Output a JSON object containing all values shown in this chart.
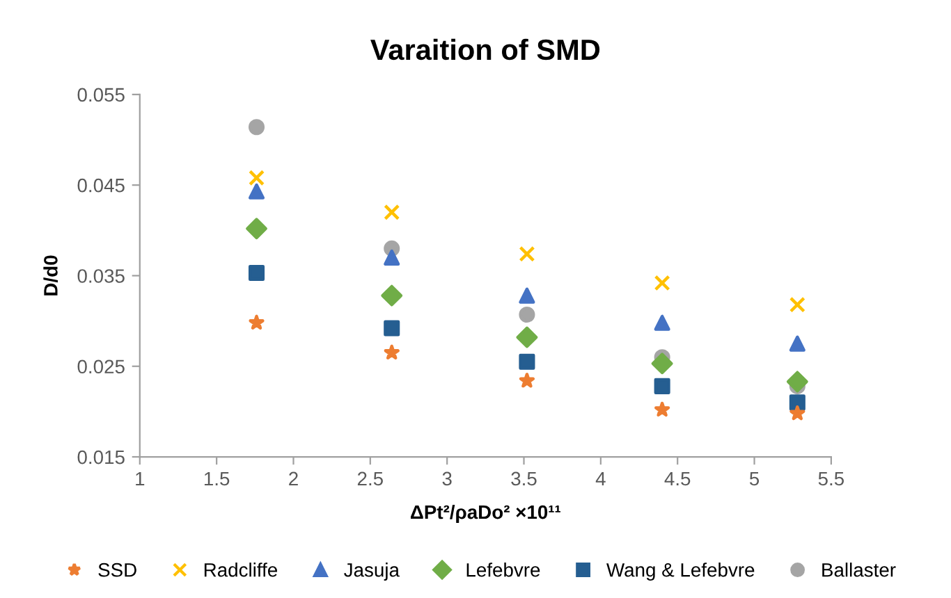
{
  "chart_data": {
    "type": "scatter",
    "title": "Varaition of SMD",
    "xlabel": "ΔPt²/ρaDo² ×10¹¹",
    "ylabel": "D/d0",
    "x": [
      1.76,
      2.64,
      3.52,
      4.4,
      5.28
    ],
    "series": [
      {
        "name": "SSD",
        "color": "#ed7d31",
        "marker": "star",
        "values": [
          0.0298,
          0.0265,
          0.0234,
          0.0202,
          0.0198
        ]
      },
      {
        "name": "Radcliffe",
        "color": "#ffc000",
        "marker": "cross",
        "values": [
          0.0458,
          0.042,
          0.0374,
          0.0342,
          0.0318
        ]
      },
      {
        "name": "Jasuja",
        "color": "#4472c4",
        "marker": "triangle",
        "values": [
          0.0443,
          0.037,
          0.0328,
          0.0298,
          0.0275
        ]
      },
      {
        "name": "Lefebvre",
        "color": "#70ad47",
        "marker": "diamond",
        "values": [
          0.0402,
          0.0328,
          0.0282,
          0.0253,
          0.0233
        ]
      },
      {
        "name": "Wang & Lefebvre",
        "color": "#255e91",
        "marker": "square",
        "values": [
          0.0353,
          0.0292,
          0.0255,
          0.0228,
          0.021
        ]
      },
      {
        "name": "Ballaster",
        "color": "#a5a5a5",
        "marker": "circle",
        "values": [
          0.0514,
          0.038,
          0.0307,
          0.026,
          0.0228
        ]
      }
    ],
    "xlim": [
      1,
      5.5
    ],
    "xticks": [
      1,
      1.5,
      2,
      2.5,
      3,
      3.5,
      4,
      4.5,
      5,
      5.5
    ],
    "ylim": [
      0.015,
      0.055
    ],
    "yticks": [
      0.015,
      0.025,
      0.035,
      0.045,
      0.055
    ],
    "grid": false,
    "legend": "bottom"
  }
}
